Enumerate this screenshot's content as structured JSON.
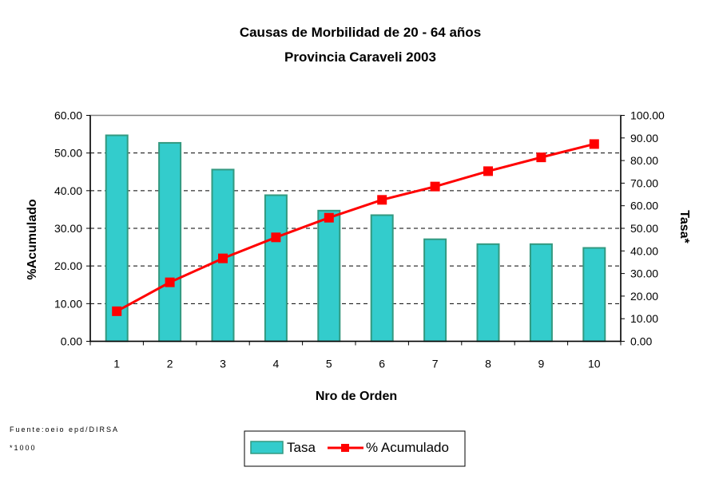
{
  "chart_data": {
    "type": "bar+line",
    "title": "Causas de Morbilidad de 20 - 64 años",
    "subtitle": "Provincia Caraveli 2003",
    "xlabel": "Nro de Orden",
    "ylabel_left": "%Acumulado",
    "ylabel_right": "Tasa*",
    "categories": [
      "1",
      "2",
      "3",
      "4",
      "5",
      "6",
      "7",
      "8",
      "9",
      "10"
    ],
    "ylim_left": [
      0,
      60
    ],
    "ylim_right": [
      0,
      100
    ],
    "left_ticks": [
      "0.00",
      "10.00",
      "20.00",
      "30.00",
      "40.00",
      "50.00",
      "60.00"
    ],
    "right_ticks": [
      "0.00",
      "10.00",
      "20.00",
      "30.00",
      "40.00",
      "50.00",
      "60.00",
      "70.00",
      "80.00",
      "90.00",
      "100.00"
    ],
    "grid": "horizontal dashed",
    "series": [
      {
        "name": "Tasa",
        "type": "bar",
        "axis": "left",
        "color": "#33cccc",
        "values": [
          54.7,
          52.7,
          45.6,
          38.8,
          34.7,
          33.5,
          27.1,
          25.8,
          25.8,
          24.8
        ]
      },
      {
        "name": "% Acumulado",
        "type": "line",
        "axis": "right",
        "color": "#ff0000",
        "values": [
          13.3,
          26.1,
          36.7,
          46.0,
          54.7,
          62.6,
          68.5,
          75.3,
          81.4,
          87.3
        ]
      }
    ],
    "legend_position": "bottom",
    "footnotes": [
      "Fuente:oeio epd/DIRSA",
      "*1000"
    ]
  }
}
